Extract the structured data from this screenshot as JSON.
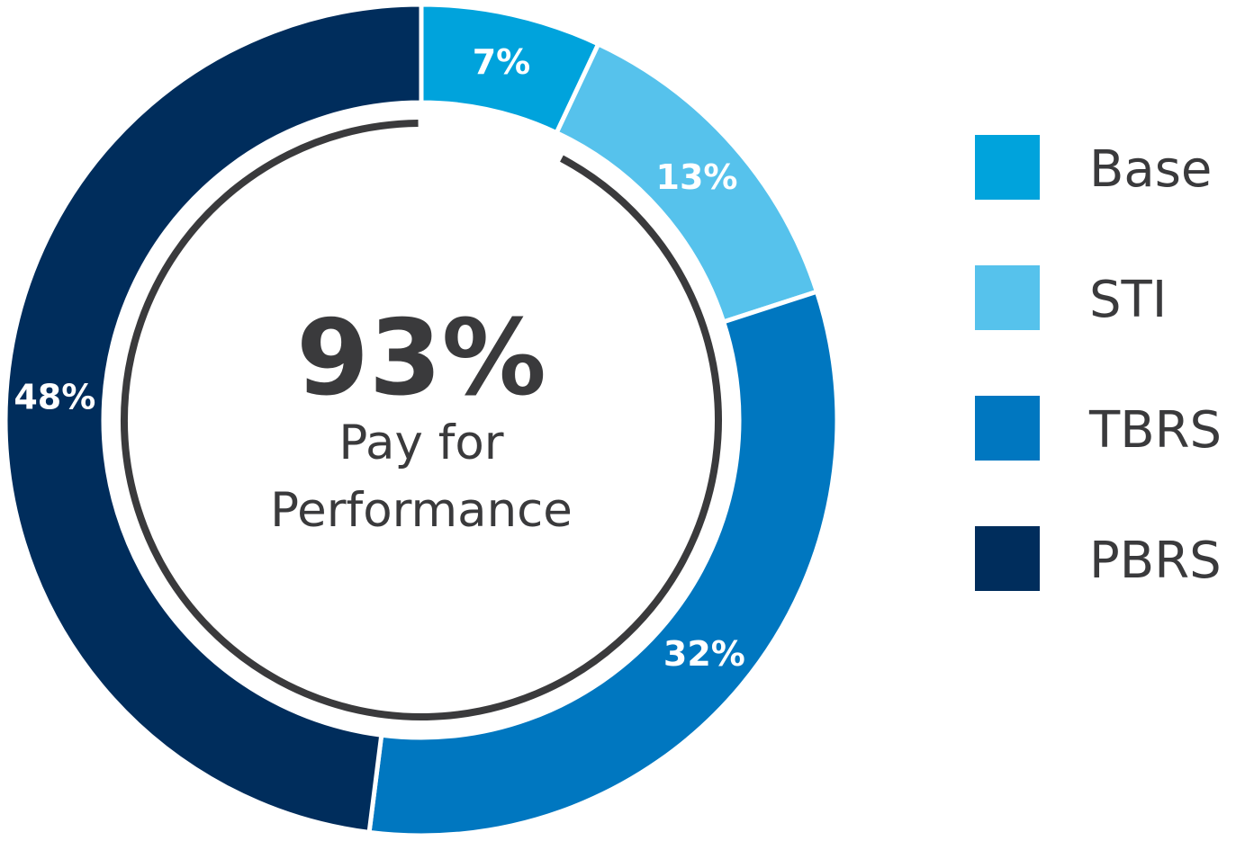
{
  "chart_data": {
    "type": "pie",
    "categories": [
      "Base",
      "STI",
      "TBRS",
      "PBRS"
    ],
    "values": [
      7,
      13,
      32,
      48
    ],
    "value_labels": [
      "7%",
      "13%",
      "32%",
      "48%"
    ],
    "colors": [
      "#00A3DC",
      "#56C2EC",
      "#0077C0",
      "#002D5C"
    ],
    "center": {
      "value": "93%",
      "line1": "Pay for",
      "line2": "Performance"
    },
    "performance_arc_share": 93,
    "legend_position": "right"
  }
}
